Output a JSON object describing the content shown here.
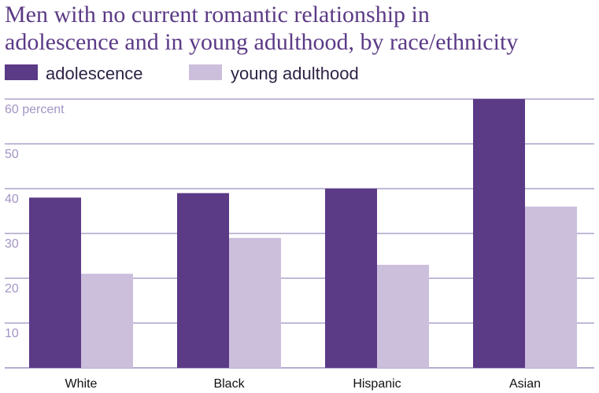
{
  "chart_data": {
    "type": "bar",
    "title": [
      "Men with no current romantic relationship in",
      "adolescence and in young adulthood, by race/ethnicity"
    ],
    "categories": [
      "White",
      "Black",
      "Hispanic",
      "Asian"
    ],
    "series": [
      {
        "name": "adolescence",
        "values": [
          38,
          39,
          40,
          60
        ]
      },
      {
        "name": "young adulthood",
        "values": [
          21,
          29,
          23,
          36
        ]
      }
    ],
    "yticks": [
      10,
      20,
      30,
      40,
      50
    ],
    "ytick_top_label": "60 percent",
    "ylim": [
      0,
      60
    ],
    "grid": true,
    "legend": "top-left",
    "colors": {
      "series": [
        "#5b3a86",
        "#cbbfdc"
      ],
      "grid": "#9d8fc0",
      "tick_text": "#a494c5",
      "title": "#5b3a86"
    }
  }
}
